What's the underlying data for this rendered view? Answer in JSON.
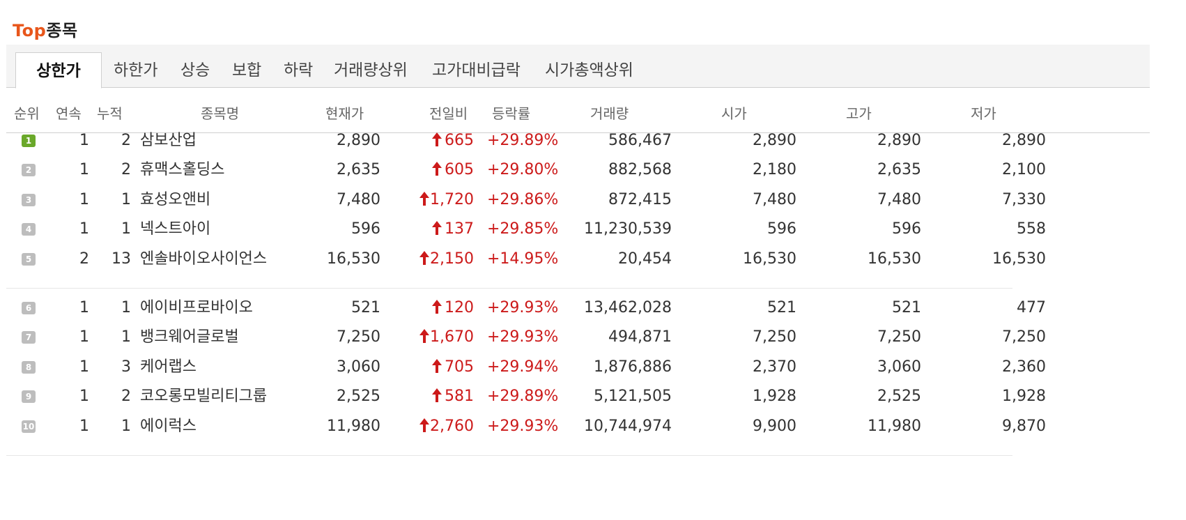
{
  "title": {
    "accent": "Top",
    "rest": "종목"
  },
  "tabs": [
    {
      "label": "상한가",
      "active": true
    },
    {
      "label": "하한가"
    },
    {
      "label": "상승"
    },
    {
      "label": "보합"
    },
    {
      "label": "하락"
    },
    {
      "label": "거래량상위"
    },
    {
      "label": "고가대비급락"
    },
    {
      "label": "시가총액상위"
    }
  ],
  "columns": {
    "rank": "순위",
    "streak": "연속",
    "cumulative": "누적",
    "name": "종목명",
    "price": "현재가",
    "change": "전일비",
    "rate": "등락률",
    "volume": "거래량",
    "open": "시가",
    "high": "고가",
    "low": "저가"
  },
  "colors": {
    "accent": "#e8561b",
    "up": "#cc1a1a",
    "rank_first": "#6aa82a",
    "rank_other": "#bdbdbd"
  },
  "icons": {
    "change": "up-arrow-icon"
  },
  "rows": [
    {
      "rank": "1",
      "streak": "1",
      "cumulative": "2",
      "name": "삼보산업",
      "price": "2,890",
      "change": "665",
      "rate": "+29.89%",
      "volume": "586,467",
      "open": "2,890",
      "high": "2,890",
      "low": "2,890"
    },
    {
      "rank": "2",
      "streak": "1",
      "cumulative": "2",
      "name": "휴맥스홀딩스",
      "price": "2,635",
      "change": "605",
      "rate": "+29.80%",
      "volume": "882,568",
      "open": "2,180",
      "high": "2,635",
      "low": "2,100"
    },
    {
      "rank": "3",
      "streak": "1",
      "cumulative": "1",
      "name": "효성오앤비",
      "price": "7,480",
      "change": "1,720",
      "rate": "+29.86%",
      "volume": "872,415",
      "open": "7,480",
      "high": "7,480",
      "low": "7,330"
    },
    {
      "rank": "4",
      "streak": "1",
      "cumulative": "1",
      "name": "넥스트아이",
      "price": "596",
      "change": "137",
      "rate": "+29.85%",
      "volume": "11,230,539",
      "open": "596",
      "high": "596",
      "low": "558"
    },
    {
      "rank": "5",
      "streak": "2",
      "cumulative": "13",
      "name": "엔솔바이오사이언스",
      "price": "16,530",
      "change": "2,150",
      "rate": "+14.95%",
      "volume": "20,454",
      "open": "16,530",
      "high": "16,530",
      "low": "16,530"
    },
    {
      "rank": "6",
      "streak": "1",
      "cumulative": "1",
      "name": "에이비프로바이오",
      "price": "521",
      "change": "120",
      "rate": "+29.93%",
      "volume": "13,462,028",
      "open": "521",
      "high": "521",
      "low": "477"
    },
    {
      "rank": "7",
      "streak": "1",
      "cumulative": "1",
      "name": "뱅크웨어글로벌",
      "price": "7,250",
      "change": "1,670",
      "rate": "+29.93%",
      "volume": "494,871",
      "open": "7,250",
      "high": "7,250",
      "low": "7,250"
    },
    {
      "rank": "8",
      "streak": "1",
      "cumulative": "3",
      "name": "케어랩스",
      "price": "3,060",
      "change": "705",
      "rate": "+29.94%",
      "volume": "1,876,886",
      "open": "2,370",
      "high": "3,060",
      "low": "2,360"
    },
    {
      "rank": "9",
      "streak": "1",
      "cumulative": "2",
      "name": "코오롱모빌리티그룹",
      "price": "2,525",
      "change": "581",
      "rate": "+29.89%",
      "volume": "5,121,505",
      "open": "1,928",
      "high": "2,525",
      "low": "1,928"
    },
    {
      "rank": "10",
      "streak": "1",
      "cumulative": "1",
      "name": "에이럭스",
      "price": "11,980",
      "change": "2,760",
      "rate": "+29.93%",
      "volume": "10,744,974",
      "open": "9,900",
      "high": "11,980",
      "low": "9,870"
    }
  ]
}
